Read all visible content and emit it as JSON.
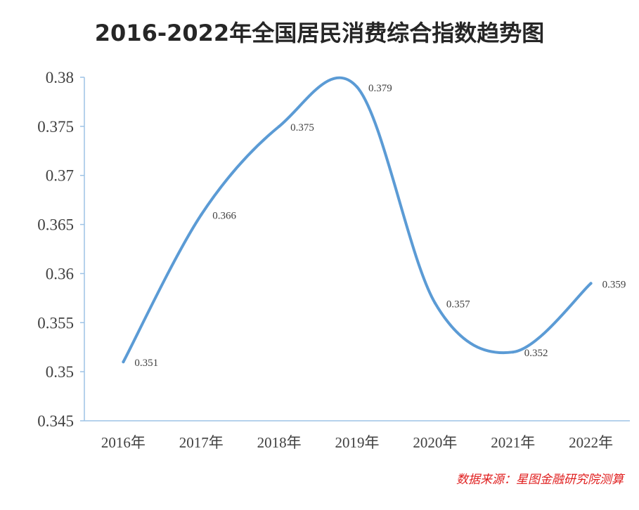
{
  "title": "2016-2022年全国居民消费综合指数趋势图",
  "source": "数据来源：星图金融研究院测算",
  "colors": {
    "line": "#5b9bd5",
    "axis": "#9dc3e6",
    "text": "#404040",
    "source": "#e02020"
  },
  "chart_data": {
    "type": "line",
    "title": "2016-2022年全国居民消费综合指数趋势图",
    "categories": [
      "2016年",
      "2017年",
      "2018年",
      "2019年",
      "2020年",
      "2021年",
      "2022年"
    ],
    "series": [
      {
        "values": [
          0.351,
          0.366,
          0.375,
          0.379,
          0.357,
          0.352,
          0.359
        ]
      }
    ],
    "data_labels": [
      "0.351",
      "0.366",
      "0.375",
      "0.379",
      "0.357",
      "0.352",
      "0.359"
    ],
    "y_ticks": [
      "0.345",
      "0.35",
      "0.355",
      "0.36",
      "0.365",
      "0.37",
      "0.375",
      "0.38"
    ],
    "ylim": [
      0.345,
      0.38
    ],
    "smooth": true,
    "grid": false,
    "legend": "none"
  }
}
